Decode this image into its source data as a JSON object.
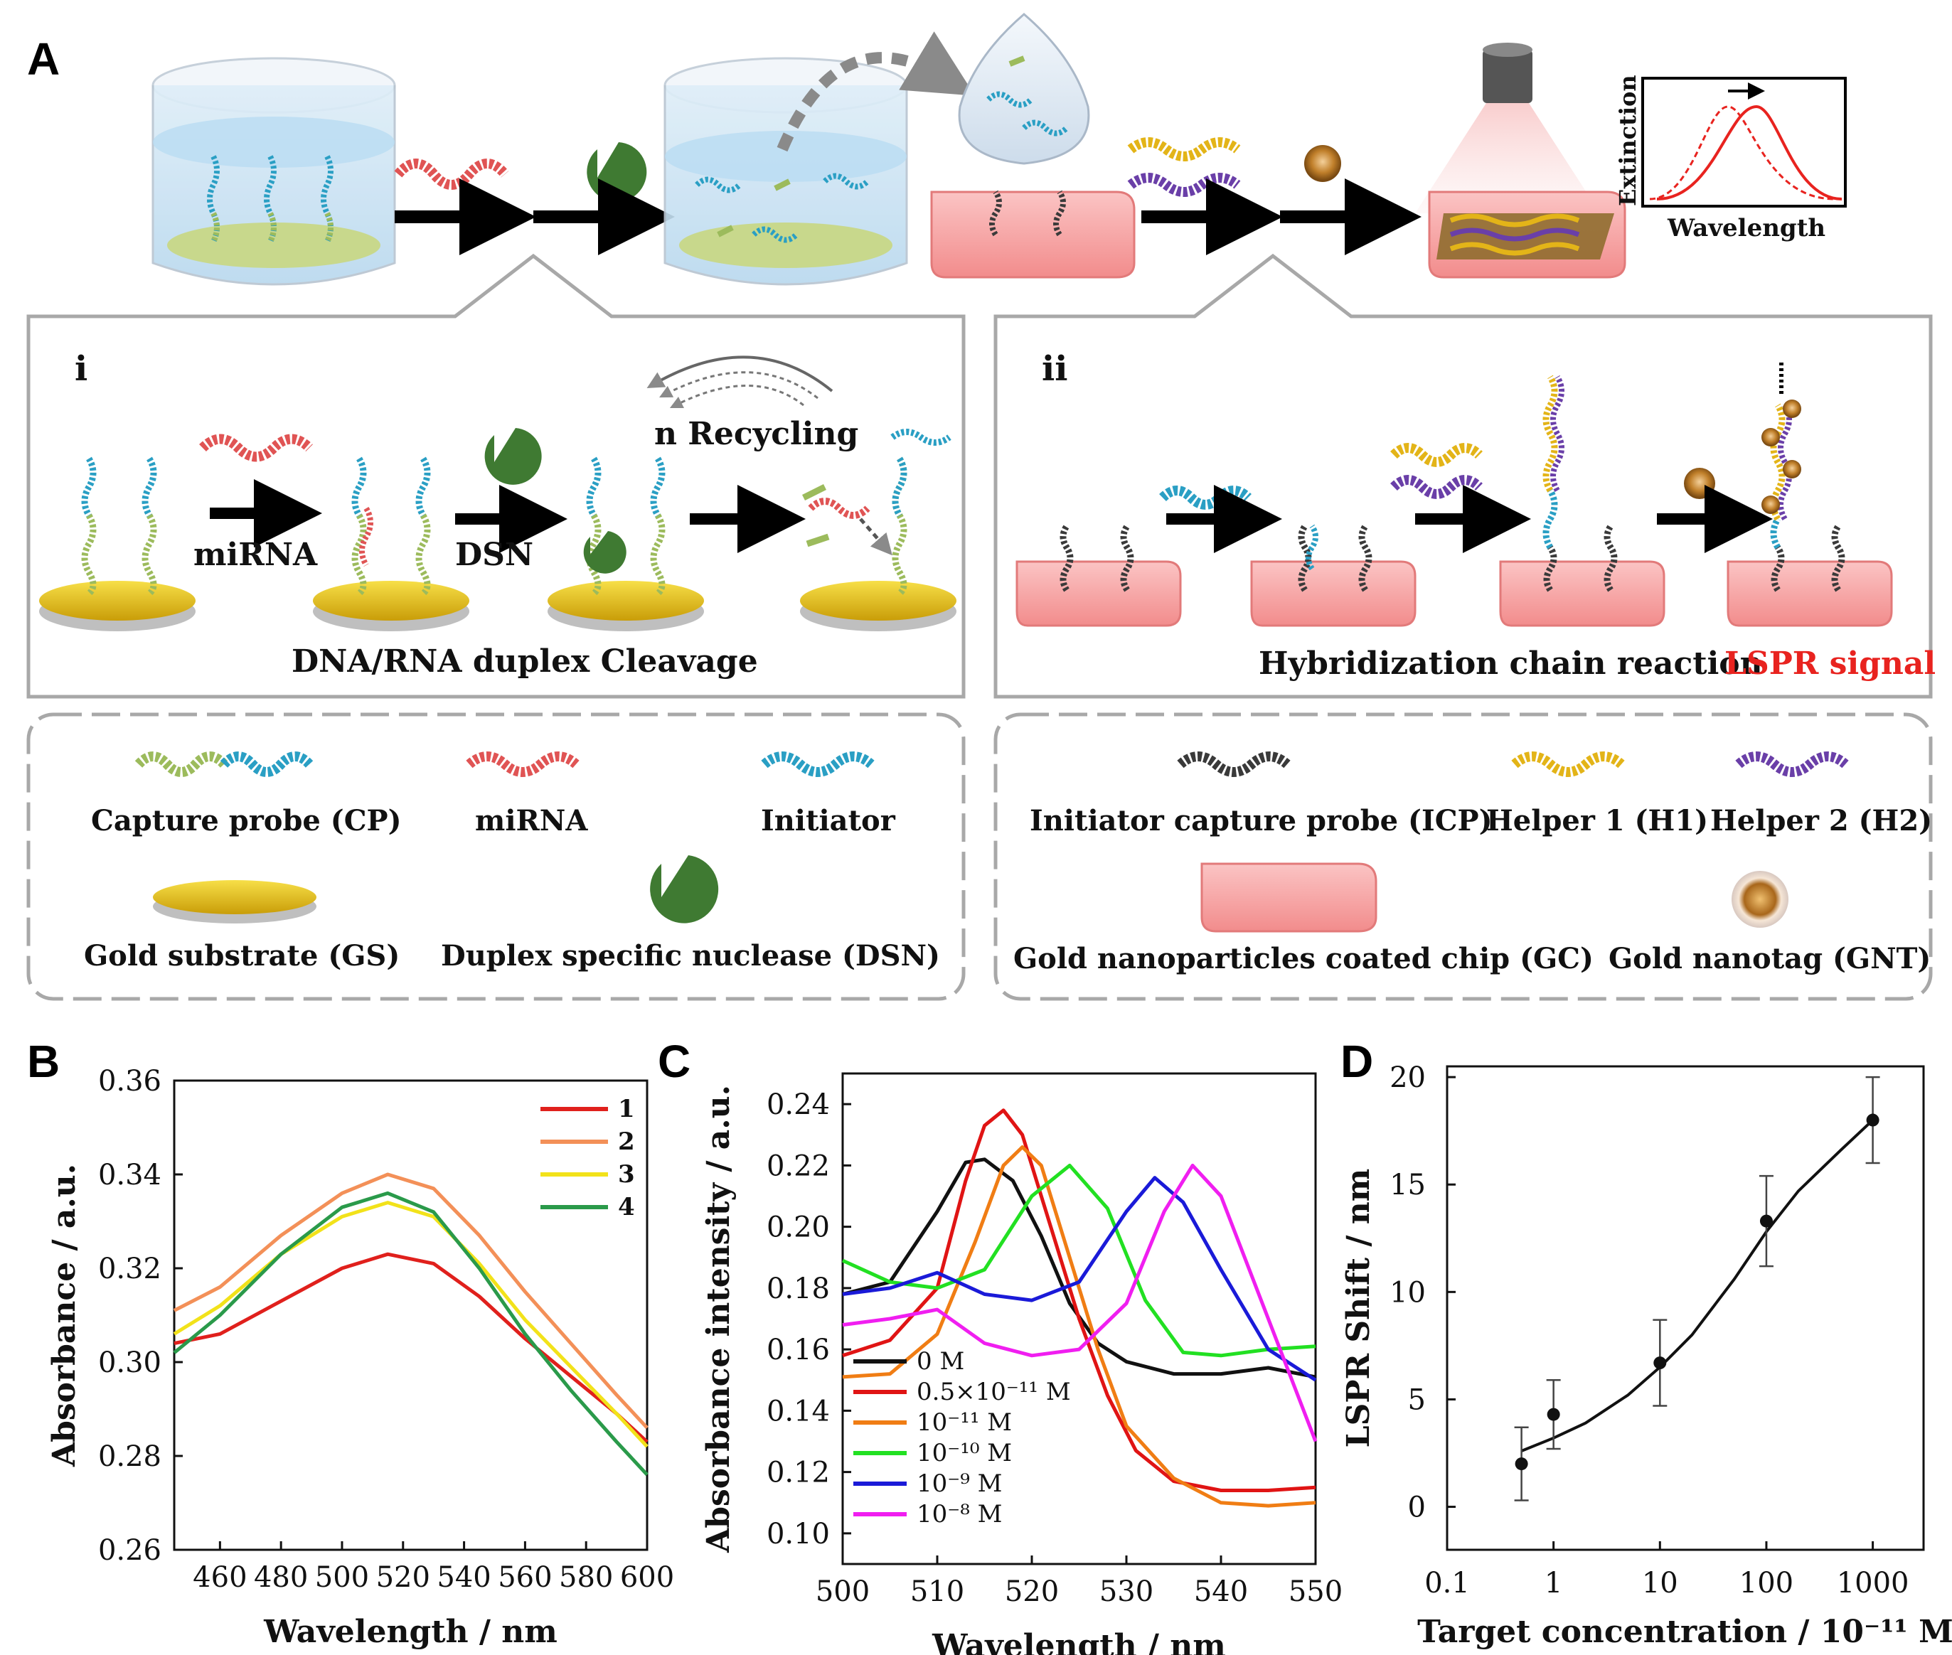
{
  "panels": {
    "A": "A",
    "B": "B",
    "C": "C",
    "D": "D",
    "i": "i",
    "ii": "ii"
  },
  "schematic": {
    "extinction_label": "Extinction",
    "wavelength_label": "Wavelength",
    "recycling_label": "n Recycling",
    "mirna_arrow_label": "miRNA",
    "dsn_arrow_label": "DSN",
    "panel_i_caption": "DNA/RNA duplex Cleavage",
    "panel_ii_caption": "Hybridization chain reaction",
    "panel_ii_signal": "LSPR signal",
    "signal_color": "#e8231f"
  },
  "legend_left": {
    "capture_probe": "Capture probe (CP)",
    "mirna": "miRNA",
    "initiator": "Initiator",
    "gold_substrate": "Gold substrate (GS)",
    "dsn": "Duplex specific nuclease (DSN)"
  },
  "legend_right": {
    "icp": "Initiator capture probe (ICP)",
    "h1": "Helper 1 (H1)",
    "h2": "Helper 2 (H2)",
    "gc": "Gold nanoparticles coated chip (GC)",
    "gnt": "Gold nanotag (GNT)"
  },
  "colors": {
    "cyan_strand": "#2a9fc4",
    "green_strand": "#9cbb5c",
    "red_strand": "#e05454",
    "yellow_strand": "#e3b418",
    "purple_strand": "#6a3fa8",
    "black_strand": "#3a3a3a",
    "gold": "#e6c21c",
    "chip": "#f4a0a0",
    "dsn": "#3f7a32"
  },
  "chart_data": [
    {
      "panel": "B",
      "type": "line",
      "xlabel": "Wavelength / nm",
      "ylabel": "Absorbance / a.u.",
      "xlim": [
        445,
        600
      ],
      "ylim": [
        0.26,
        0.36
      ],
      "xticks": [
        "460",
        "480",
        "500",
        "520",
        "540",
        "560",
        "580",
        "600"
      ],
      "yticks": [
        "0.26",
        "0.28",
        "0.30",
        "0.32",
        "0.34",
        "0.36"
      ],
      "series": [
        {
          "name": "1",
          "color": "#e0201c",
          "x": [
            445,
            460,
            480,
            500,
            515,
            530,
            545,
            560,
            575,
            590,
            600
          ],
          "y": [
            0.304,
            0.306,
            0.313,
            0.32,
            0.323,
            0.321,
            0.314,
            0.305,
            0.297,
            0.289,
            0.283
          ]
        },
        {
          "name": "2",
          "color": "#f39058",
          "x": [
            445,
            460,
            480,
            500,
            515,
            530,
            545,
            560,
            575,
            590,
            600
          ],
          "y": [
            0.311,
            0.316,
            0.327,
            0.336,
            0.34,
            0.337,
            0.327,
            0.315,
            0.304,
            0.293,
            0.286
          ]
        },
        {
          "name": "3",
          "color": "#f2e21a",
          "x": [
            445,
            460,
            480,
            500,
            515,
            530,
            545,
            560,
            575,
            590,
            600
          ],
          "y": [
            0.306,
            0.312,
            0.323,
            0.331,
            0.334,
            0.331,
            0.321,
            0.309,
            0.299,
            0.289,
            0.282
          ]
        },
        {
          "name": "4",
          "color": "#2a9a4a",
          "x": [
            445,
            460,
            480,
            500,
            515,
            530,
            545,
            560,
            575,
            590,
            600
          ],
          "y": [
            0.302,
            0.31,
            0.323,
            0.333,
            0.336,
            0.332,
            0.32,
            0.306,
            0.294,
            0.283,
            0.276
          ]
        }
      ]
    },
    {
      "panel": "C",
      "type": "line",
      "xlabel": "Wavelength / nm",
      "ylabel": "Absorbance intensity / a.u.",
      "xlim": [
        500,
        550
      ],
      "ylim": [
        0.09,
        0.25
      ],
      "xticks": [
        "500",
        "510",
        "520",
        "530",
        "540",
        "550"
      ],
      "yticks": [
        "0.10",
        "0.12",
        "0.14",
        "0.16",
        "0.18",
        "0.20",
        "0.22",
        "0.24"
      ],
      "series": [
        {
          "name": "0 M",
          "color": "#111111",
          "x": [
            500,
            505,
            510,
            513,
            515,
            518,
            521,
            524,
            527,
            530,
            535,
            540,
            545,
            550
          ],
          "y": [
            0.178,
            0.182,
            0.205,
            0.221,
            0.222,
            0.215,
            0.197,
            0.175,
            0.162,
            0.156,
            0.152,
            0.152,
            0.154,
            0.151
          ]
        },
        {
          "name": "0.5×10⁻¹¹ M",
          "color": "#e01414",
          "x": [
            500,
            505,
            510,
            513,
            515,
            517,
            519,
            522,
            525,
            528,
            531,
            535,
            540,
            545,
            550
          ],
          "y": [
            0.158,
            0.163,
            0.18,
            0.215,
            0.233,
            0.238,
            0.23,
            0.2,
            0.17,
            0.145,
            0.127,
            0.117,
            0.114,
            0.114,
            0.115
          ]
        },
        {
          "name": "10⁻¹¹ M",
          "color": "#f07d14",
          "x": [
            500,
            505,
            510,
            514,
            517,
            519,
            521,
            524,
            527,
            530,
            535,
            540,
            545,
            550
          ],
          "y": [
            0.151,
            0.152,
            0.165,
            0.195,
            0.22,
            0.226,
            0.22,
            0.19,
            0.16,
            0.135,
            0.118,
            0.11,
            0.109,
            0.11
          ]
        },
        {
          "name": "10⁻¹⁰ M",
          "color": "#22e022",
          "x": [
            500,
            505,
            510,
            515,
            520,
            524,
            528,
            532,
            536,
            540,
            545,
            550
          ],
          "y": [
            0.189,
            0.182,
            0.18,
            0.186,
            0.21,
            0.22,
            0.206,
            0.176,
            0.159,
            0.158,
            0.16,
            0.161
          ]
        },
        {
          "name": "10⁻⁹ M",
          "color": "#1a1ad8",
          "x": [
            500,
            505,
            510,
            515,
            520,
            525,
            530,
            533,
            536,
            540,
            545,
            550
          ],
          "y": [
            0.178,
            0.18,
            0.185,
            0.178,
            0.176,
            0.182,
            0.205,
            0.216,
            0.208,
            0.186,
            0.16,
            0.15
          ]
        },
        {
          "name": "10⁻⁸ M",
          "color": "#f01ef0",
          "x": [
            500,
            505,
            510,
            515,
            520,
            525,
            530,
            534,
            537,
            540,
            545,
            550
          ],
          "y": [
            0.168,
            0.17,
            0.173,
            0.162,
            0.158,
            0.16,
            0.175,
            0.205,
            0.22,
            0.21,
            0.17,
            0.13
          ]
        }
      ]
    },
    {
      "panel": "D",
      "type": "scatter",
      "xlabel": "Target concentration  / 10⁻¹¹ M",
      "ylabel": "LSPR Shift / nm",
      "xscale": "log",
      "xlim": [
        0.1,
        3000
      ],
      "ylim": [
        -2,
        20.5
      ],
      "xticks": [
        "0.1",
        "1",
        "10",
        "100",
        "1000"
      ],
      "yticks": [
        "0",
        "5",
        "10",
        "15",
        "20"
      ],
      "points": [
        {
          "x": 0.5,
          "y": 2.0,
          "err": 1.7
        },
        {
          "x": 1,
          "y": 4.3,
          "err": 1.6
        },
        {
          "x": 10,
          "y": 6.7,
          "err": 2.0
        },
        {
          "x": 100,
          "y": 13.3,
          "err": 2.1
        },
        {
          "x": 1000,
          "y": 18.0,
          "err": 2.0
        }
      ],
      "fit": {
        "x": [
          0.5,
          1,
          2,
          5,
          10,
          20,
          50,
          100,
          200,
          500,
          1000
        ],
        "y": [
          2.6,
          3.2,
          3.9,
          5.2,
          6.5,
          8.0,
          10.6,
          12.8,
          14.7,
          16.6,
          18.0
        ]
      }
    }
  ]
}
